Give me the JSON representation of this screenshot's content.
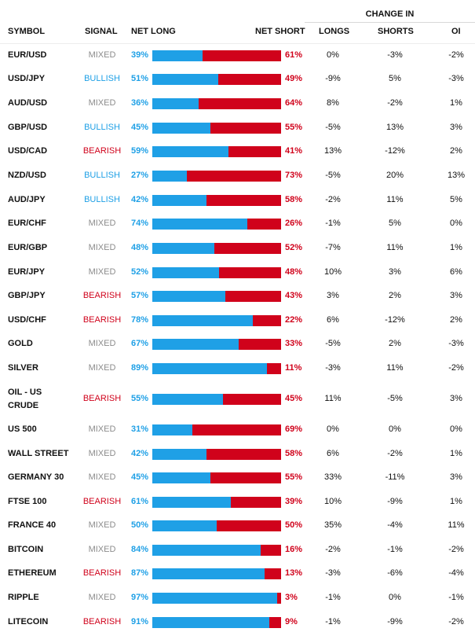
{
  "headers": {
    "change_in": "CHANGE IN",
    "symbol": "SYMBOL",
    "signal": "SIGNAL",
    "net_long": "NET LONG",
    "net_short": "NET SHORT",
    "longs": "LONGS",
    "shorts": "SHORTS",
    "oi": "OI"
  },
  "colors": {
    "long": "#1fa0e6",
    "short": "#d0021b",
    "mixed": "#8c8c8c"
  },
  "rows": [
    {
      "symbol": "EUR/USD",
      "signal": "MIXED",
      "net_long": "39%",
      "net_short": "61%",
      "long_fraction": 0.39,
      "longs": "0%",
      "shorts": "-3%",
      "oi": "-2%"
    },
    {
      "symbol": "USD/JPY",
      "signal": "BULLISH",
      "net_long": "51%",
      "net_short": "49%",
      "long_fraction": 0.51,
      "longs": "-9%",
      "shorts": "5%",
      "oi": "-3%"
    },
    {
      "symbol": "AUD/USD",
      "signal": "MIXED",
      "net_long": "36%",
      "net_short": "64%",
      "long_fraction": 0.36,
      "longs": "8%",
      "shorts": "-2%",
      "oi": "1%"
    },
    {
      "symbol": "GBP/USD",
      "signal": "BULLISH",
      "net_long": "45%",
      "net_short": "55%",
      "long_fraction": 0.45,
      "longs": "-5%",
      "shorts": "13%",
      "oi": "3%"
    },
    {
      "symbol": "USD/CAD",
      "signal": "BEARISH",
      "net_long": "59%",
      "net_short": "41%",
      "long_fraction": 0.59,
      "longs": "13%",
      "shorts": "-12%",
      "oi": "2%"
    },
    {
      "symbol": "NZD/USD",
      "signal": "BULLISH",
      "net_long": "27%",
      "net_short": "73%",
      "long_fraction": 0.27,
      "longs": "-5%",
      "shorts": "20%",
      "oi": "13%"
    },
    {
      "symbol": "AUD/JPY",
      "signal": "BULLISH",
      "net_long": "42%",
      "net_short": "58%",
      "long_fraction": 0.42,
      "longs": "-2%",
      "shorts": "11%",
      "oi": "5%"
    },
    {
      "symbol": "EUR/CHF",
      "signal": "MIXED",
      "net_long": "74%",
      "net_short": "26%",
      "long_fraction": 0.74,
      "longs": "-1%",
      "shorts": "5%",
      "oi": "0%"
    },
    {
      "symbol": "EUR/GBP",
      "signal": "MIXED",
      "net_long": "48%",
      "net_short": "52%",
      "long_fraction": 0.48,
      "longs": "-7%",
      "shorts": "11%",
      "oi": "1%"
    },
    {
      "symbol": "EUR/JPY",
      "signal": "MIXED",
      "net_long": "52%",
      "net_short": "48%",
      "long_fraction": 0.52,
      "longs": "10%",
      "shorts": "3%",
      "oi": "6%"
    },
    {
      "symbol": "GBP/JPY",
      "signal": "BEARISH",
      "net_long": "57%",
      "net_short": "43%",
      "long_fraction": 0.57,
      "longs": "3%",
      "shorts": "2%",
      "oi": "3%"
    },
    {
      "symbol": "USD/CHF",
      "signal": "BEARISH",
      "net_long": "78%",
      "net_short": "22%",
      "long_fraction": 0.78,
      "longs": "6%",
      "shorts": "-12%",
      "oi": "2%"
    },
    {
      "symbol": "GOLD",
      "signal": "MIXED",
      "net_long": "67%",
      "net_short": "33%",
      "long_fraction": 0.67,
      "longs": "-5%",
      "shorts": "2%",
      "oi": "-3%"
    },
    {
      "symbol": "SILVER",
      "signal": "MIXED",
      "net_long": "89%",
      "net_short": "11%",
      "long_fraction": 0.89,
      "longs": "-3%",
      "shorts": "11%",
      "oi": "-2%"
    },
    {
      "symbol": "OIL - US CRUDE",
      "symbol_line1": "OIL - US",
      "symbol_line2": "CRUDE",
      "signal": "BEARISH",
      "net_long": "55%",
      "net_short": "45%",
      "long_fraction": 0.55,
      "longs": "11%",
      "shorts": "-5%",
      "oi": "3%"
    },
    {
      "symbol": "US 500",
      "signal": "MIXED",
      "net_long": "31%",
      "net_short": "69%",
      "long_fraction": 0.31,
      "longs": "0%",
      "shorts": "0%",
      "oi": "0%"
    },
    {
      "symbol": "WALL STREET",
      "signal": "MIXED",
      "net_long": "42%",
      "net_short": "58%",
      "long_fraction": 0.42,
      "longs": "6%",
      "shorts": "-2%",
      "oi": "1%"
    },
    {
      "symbol": "GERMANY 30",
      "signal": "MIXED",
      "net_long": "45%",
      "net_short": "55%",
      "long_fraction": 0.45,
      "longs": "33%",
      "shorts": "-11%",
      "oi": "3%"
    },
    {
      "symbol": "FTSE 100",
      "signal": "BEARISH",
      "net_long": "61%",
      "net_short": "39%",
      "long_fraction": 0.61,
      "longs": "10%",
      "shorts": "-9%",
      "oi": "1%"
    },
    {
      "symbol": "FRANCE 40",
      "signal": "MIXED",
      "net_long": "50%",
      "net_short": "50%",
      "long_fraction": 0.5,
      "longs": "35%",
      "shorts": "-4%",
      "oi": "11%"
    },
    {
      "symbol": "BITCOIN",
      "signal": "MIXED",
      "net_long": "84%",
      "net_short": "16%",
      "long_fraction": 0.84,
      "longs": "-2%",
      "shorts": "-1%",
      "oi": "-2%"
    },
    {
      "symbol": "ETHEREUM",
      "signal": "BEARISH",
      "net_long": "87%",
      "net_short": "13%",
      "long_fraction": 0.87,
      "longs": "-3%",
      "shorts": "-6%",
      "oi": "-4%"
    },
    {
      "symbol": "RIPPLE",
      "signal": "MIXED",
      "net_long": "97%",
      "net_short": "3%",
      "long_fraction": 0.97,
      "longs": "-1%",
      "shorts": "0%",
      "oi": "-1%"
    },
    {
      "symbol": "LITECOIN",
      "signal": "BEARISH",
      "net_long": "91%",
      "net_short": "9%",
      "long_fraction": 0.91,
      "longs": "-1%",
      "shorts": "-9%",
      "oi": "-2%"
    }
  ]
}
